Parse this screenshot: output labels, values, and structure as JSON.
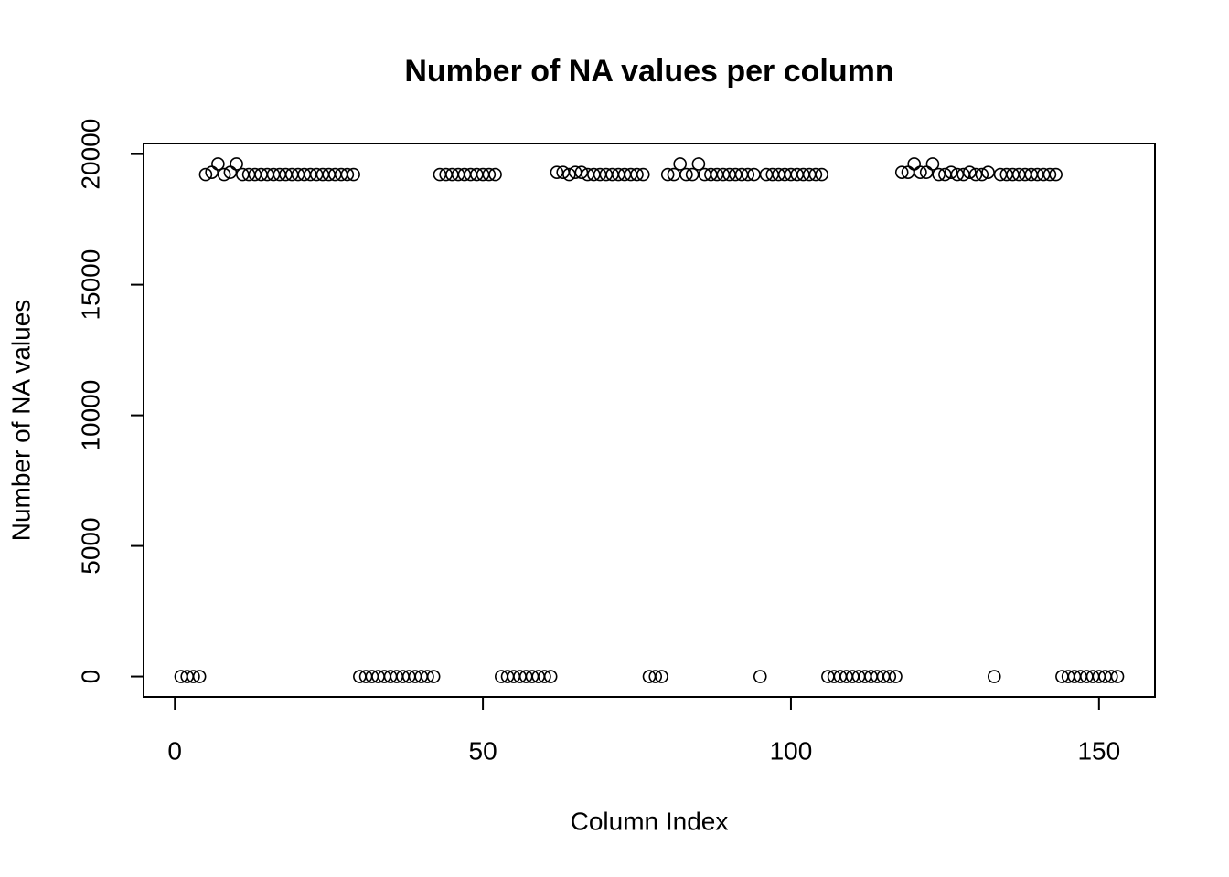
{
  "chart_data": {
    "type": "scatter",
    "title": "Number of NA values per column",
    "x_label": "Column Index",
    "y_label": "Number of NA values",
    "x": [
      1,
      2,
      3,
      4,
      5,
      6,
      7,
      8,
      9,
      10,
      11,
      12,
      13,
      14,
      15,
      16,
      17,
      18,
      19,
      20,
      21,
      22,
      23,
      24,
      25,
      26,
      27,
      28,
      29,
      30,
      31,
      32,
      33,
      34,
      35,
      36,
      37,
      38,
      39,
      40,
      41,
      42,
      43,
      44,
      45,
      46,
      47,
      48,
      49,
      50,
      51,
      52,
      53,
      54,
      55,
      56,
      57,
      58,
      59,
      60,
      61,
      62,
      63,
      64,
      65,
      66,
      67,
      68,
      69,
      70,
      71,
      72,
      73,
      74,
      75,
      76,
      77,
      78,
      79,
      80,
      81,
      82,
      83,
      84,
      85,
      86,
      87,
      88,
      89,
      90,
      91,
      92,
      93,
      94,
      95,
      96,
      97,
      98,
      99,
      100,
      101,
      102,
      103,
      104,
      105,
      106,
      107,
      108,
      109,
      110,
      111,
      112,
      113,
      114,
      115,
      116,
      117,
      118,
      119,
      120,
      121,
      122,
      123,
      124,
      125,
      126,
      127,
      128,
      129,
      130,
      131,
      132,
      133,
      134,
      135,
      136,
      137,
      138,
      139,
      140,
      141,
      142,
      143,
      144,
      145,
      146,
      147,
      148,
      149,
      150,
      151,
      152,
      153
    ],
    "values": [
      0,
      0,
      0,
      0,
      19216,
      19300,
      19622,
      19216,
      19300,
      19622,
      19216,
      19216,
      19216,
      19216,
      19216,
      19216,
      19216,
      19216,
      19216,
      19216,
      19216,
      19216,
      19216,
      19216,
      19216,
      19216,
      19216,
      19216,
      19216,
      0,
      0,
      0,
      0,
      0,
      0,
      0,
      0,
      0,
      0,
      0,
      0,
      0,
      19216,
      19216,
      19216,
      19216,
      19216,
      19216,
      19216,
      19216,
      19216,
      19216,
      0,
      0,
      0,
      0,
      0,
      0,
      0,
      0,
      0,
      19300,
      19300,
      19216,
      19300,
      19300,
      19216,
      19216,
      19216,
      19216,
      19216,
      19216,
      19216,
      19216,
      19216,
      19216,
      0,
      0,
      0,
      19216,
      19216,
      19622,
      19216,
      19216,
      19622,
      19216,
      19216,
      19216,
      19216,
      19216,
      19216,
      19216,
      19216,
      19216,
      0,
      19216,
      19216,
      19216,
      19216,
      19216,
      19216,
      19216,
      19216,
      19216,
      19216,
      0,
      0,
      0,
      0,
      0,
      0,
      0,
      0,
      0,
      0,
      0,
      0,
      19300,
      19300,
      19622,
      19300,
      19300,
      19622,
      19216,
      19216,
      19300,
      19216,
      19216,
      19300,
      19216,
      19216,
      19300,
      0,
      19216,
      19216,
      19216,
      19216,
      19216,
      19216,
      19216,
      19216,
      19216,
      19216,
      0,
      0,
      0,
      0,
      0,
      0,
      0,
      0,
      0,
      0
    ],
    "color": "#000000",
    "xlim": [
      -5.08,
      159.08
    ],
    "xticks": [
      0,
      50,
      100,
      150
    ],
    "ylim": [
      -784.88,
      20406.88
    ],
    "yticks": [
      0,
      5000,
      10000,
      15000,
      20000
    ]
  }
}
